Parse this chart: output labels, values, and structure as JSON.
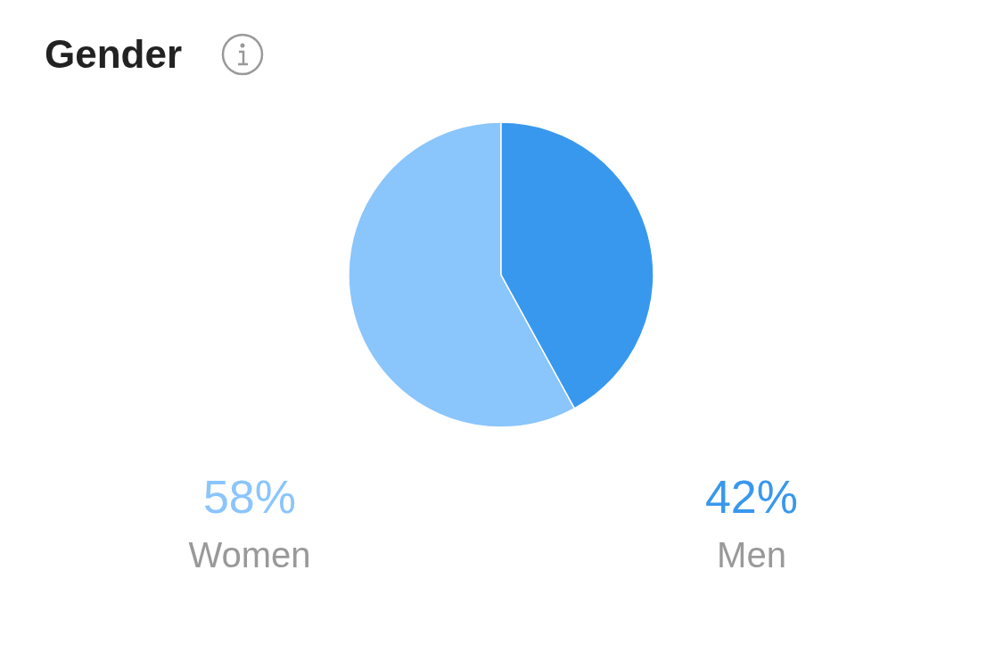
{
  "chart_data": {
    "type": "pie",
    "title": "Gender",
    "categories": [
      "Women",
      "Men"
    ],
    "values": [
      58,
      42
    ],
    "colors": [
      "#8ac5fc",
      "#3898ee"
    ],
    "value_labels": [
      "58%",
      "42%"
    ]
  }
}
